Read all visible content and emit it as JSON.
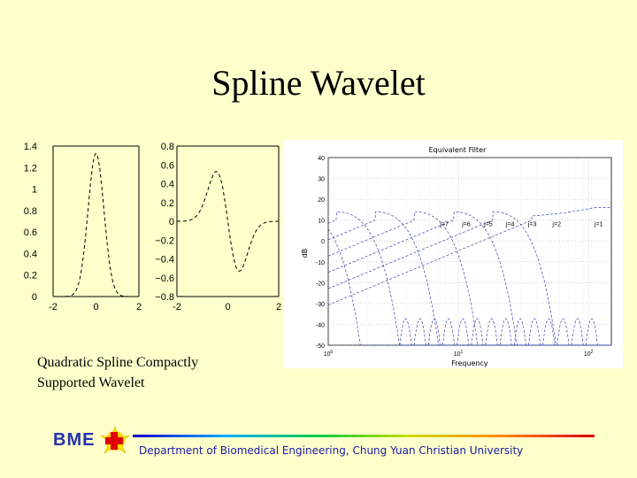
{
  "slide": {
    "title": "Spline Wavelet",
    "caption_line1": "Quadratic Spline Compactly",
    "caption_line2": "Supported Wavelet",
    "footer": "Department of Biomedical Engineering, Chung Yuan Christian University",
    "logo_text": "BME"
  },
  "colors": {
    "background": "#ffffcc",
    "footer_text": "#1a1aaa",
    "filter_lines": "#3344aa"
  },
  "chart_data": [
    {
      "type": "line",
      "name": "scaling-function",
      "xlim": [
        -2,
        2
      ],
      "ylim": [
        0,
        1.4
      ],
      "xticks": [
        "-2",
        "0",
        "2"
      ],
      "yticks": [
        "0",
        "0.2",
        "0.4",
        "0.6",
        "0.8",
        "1",
        "1.2",
        "1.4"
      ],
      "line_style": "dashed",
      "peak": {
        "x": 0,
        "y": 1.33
      },
      "width_sigma": 0.37
    },
    {
      "type": "line",
      "name": "wavelet-function",
      "xlim": [
        -2,
        2
      ],
      "ylim": [
        -0.8,
        0.8
      ],
      "xticks": [
        "-2",
        "0",
        "2"
      ],
      "yticks": [
        "-0.8",
        "-0.6",
        "-0.4",
        "-0.2",
        "0",
        "0.2",
        "0.4",
        "0.6",
        "0.8"
      ],
      "line_style": "dashed",
      "extrema": [
        {
          "x": -0.45,
          "y": 0.53
        },
        {
          "x": 0.45,
          "y": -0.53
        }
      ]
    },
    {
      "type": "line",
      "name": "equivalent-filter",
      "title": "Equivalent Filter",
      "xlabel": "Frequency",
      "ylabel": "dB",
      "xscale": "log",
      "xlim": [
        1,
        150
      ],
      "ylim": [
        -50,
        40
      ],
      "xticks": [
        "10^0",
        "10^1",
        "10^2"
      ],
      "yticks": [
        "40",
        "30",
        "20",
        "10",
        "0",
        "-10",
        "-20",
        "-30",
        "-40",
        "-50"
      ],
      "grid": true,
      "series": [
        {
          "name": "j=7",
          "label_x": 7.8,
          "label_y": 7
        },
        {
          "name": "j=6",
          "label_x": 11.5,
          "label_y": 7
        },
        {
          "name": "j=5",
          "label_x": 17,
          "label_y": 7
        },
        {
          "name": "j=4",
          "label_x": 25,
          "label_y": 7
        },
        {
          "name": "j=3",
          "label_x": 37,
          "label_y": 7
        },
        {
          "name": "j=2",
          "label_x": 57,
          "label_y": 7
        },
        {
          "name": "j=1",
          "label_x": 120,
          "label_y": 7
        }
      ]
    }
  ]
}
